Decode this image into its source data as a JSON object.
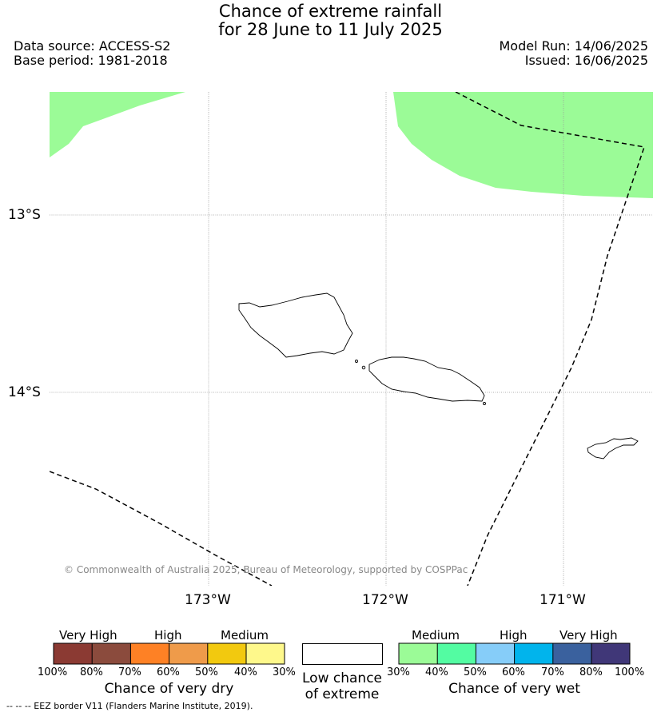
{
  "title": {
    "line1": "Chance of extreme rainfall",
    "line2": "for 28 June to 11 July 2025"
  },
  "meta": {
    "source": "Data source: ACCESS-S2",
    "base": "Base period: 1981-2018",
    "run": "Model Run: 14/06/2025",
    "issued": "Issued: 16/06/2025"
  },
  "map": {
    "lat_labels": [
      "13°S",
      "14°S"
    ],
    "lon_labels": [
      "173°W",
      "172°W",
      "171°W"
    ],
    "copyright": "© Commonwealth of Australia 2025, Bureau of Meteorology, supported by COSPPac",
    "wet_fill_color": "#9bfb97"
  },
  "legend": {
    "dry": {
      "categories": [
        "Very High",
        "High",
        "Medium"
      ],
      "colors": [
        "#8b3a33",
        "#8b4b3d",
        "#fe8125",
        "#ef9b4a",
        "#f2c90f",
        "#fef88b"
      ],
      "ticks": [
        "100%",
        "80%",
        "70%",
        "60%",
        "50%",
        "40%",
        "30%"
      ],
      "title": "Chance of very dry"
    },
    "low": {
      "line1": "Low chance",
      "line2": "of extreme"
    },
    "wet": {
      "categories": [
        "Medium",
        "High",
        "Very High"
      ],
      "colors": [
        "#9bfb97",
        "#53fca2",
        "#86cdf9",
        "#01b4ec",
        "#3a619e",
        "#403778"
      ],
      "ticks": [
        "30%",
        "40%",
        "50%",
        "60%",
        "70%",
        "80%",
        "100%"
      ],
      "title": "Chance of very wet"
    }
  },
  "footer": "--  --  -- EEZ border V11 (Flanders Marine Institute, 2019)."
}
